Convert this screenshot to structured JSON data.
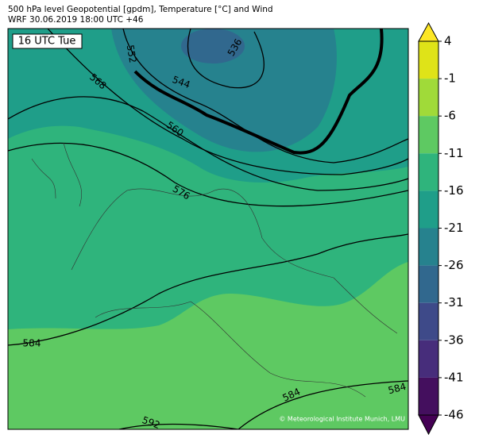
{
  "header": {
    "title": "500 hPa level Geopotential [gpdm], Temperature [°C] and Wind",
    "subtitle": "WRF 30.06.2019 18:00 UTC +46"
  },
  "time_label": "16 UTC Tue",
  "contour_labels": [
    552,
    544,
    536,
    560,
    568,
    576,
    584,
    584,
    584,
    592
  ],
  "credit": "© Meteorological Institute Munich, LMU",
  "colorbar": {
    "lim": [
      -46,
      4
    ],
    "ticks": [
      4,
      -1,
      -6,
      -11,
      -16,
      -21,
      -26,
      -31,
      -36,
      -41,
      -46
    ],
    "colors": [
      "#dfe318",
      "#a0da39",
      "#5ec962",
      "#2fb47c",
      "#1f9e89",
      "#26828e",
      "#31688e",
      "#3e4a89",
      "#472d7b",
      "#440f5e"
    ],
    "over_color": "#fde725",
    "under_color": "#440154"
  }
}
